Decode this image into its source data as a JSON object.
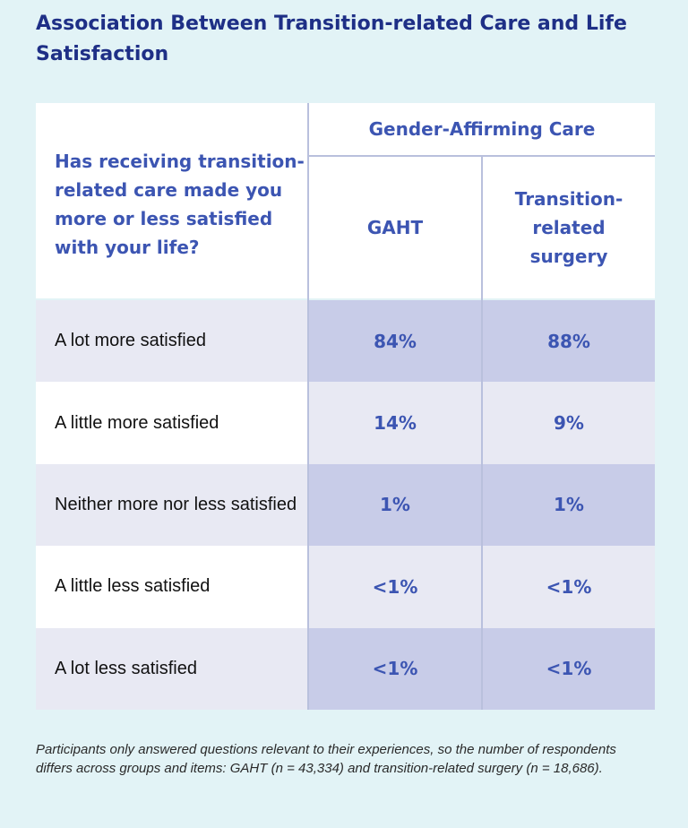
{
  "title": "Association Between Transition-related Care and Life Satisfaction",
  "colors": {
    "background": "#e2f3f6",
    "title": "#1e2f86",
    "accent": "#3c55b2",
    "dark_row_label": "#e8e9f3",
    "light_row_label": "#ffffff",
    "dark_row_value": "#c8cce8",
    "light_row_value": "#e8e9f3"
  },
  "chart_data": {
    "type": "table",
    "row_header": "Has receiving transition-related care made you more or less satisfied with your life?",
    "column_group": "Gender-Affirming Care",
    "columns": [
      "GAHT",
      "Transition-related surgery"
    ],
    "rows": [
      {
        "label": "A lot more satisfied",
        "values": [
          "84%",
          "88%"
        ]
      },
      {
        "label": "A little more satisfied",
        "values": [
          "14%",
          "9%"
        ]
      },
      {
        "label": "Neither more nor less satisfied",
        "values": [
          "1%",
          "1%"
        ]
      },
      {
        "label": "A little less satisfied",
        "values": [
          "<1%",
          "<1%"
        ]
      },
      {
        "label": "A lot less satisfied",
        "values": [
          "<1%",
          "<1%"
        ]
      }
    ]
  },
  "footnote": "Participants only answered questions relevant to their experiences, so the number of respondents differs across groups and items: GAHT (n = 43,334) and transition-related surgery (n = 18,686)."
}
